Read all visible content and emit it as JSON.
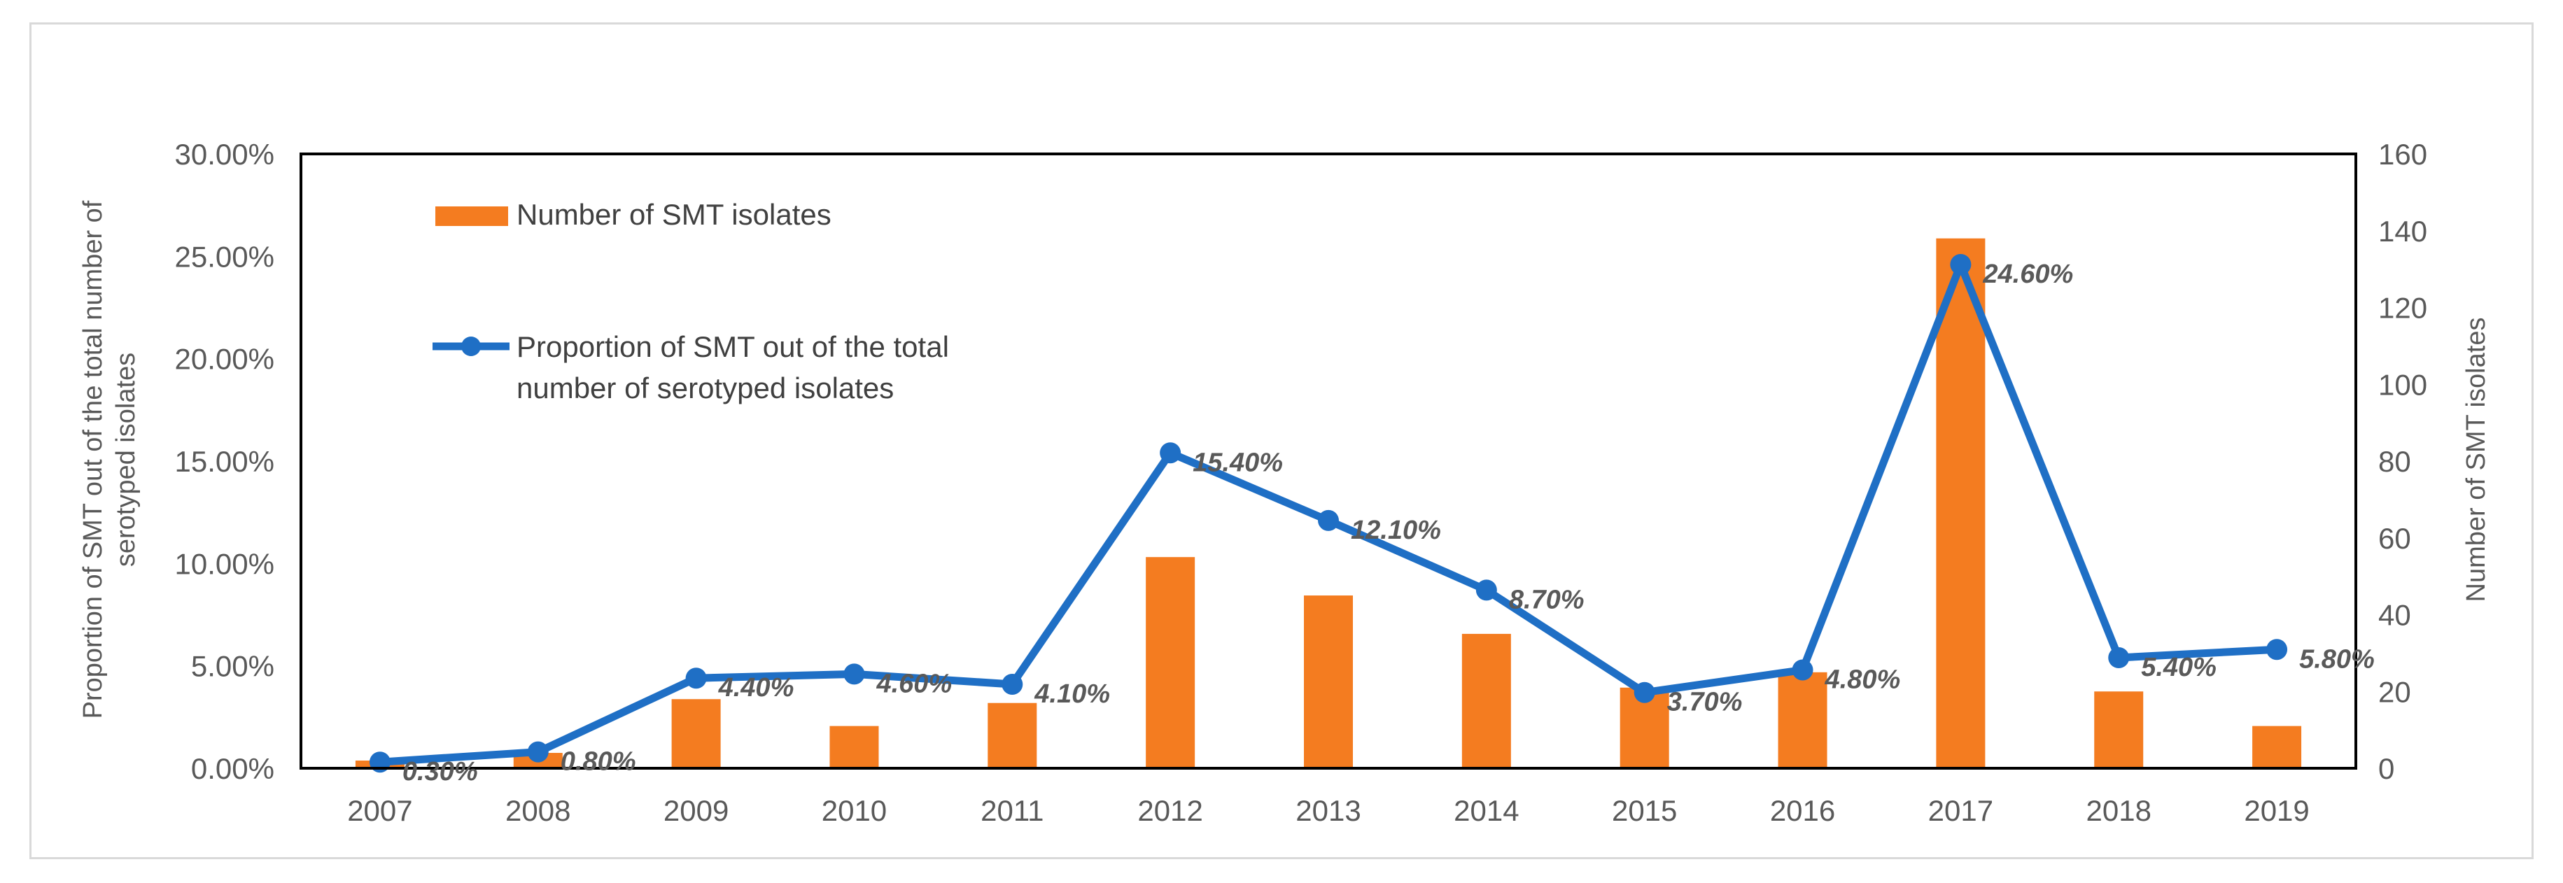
{
  "chart_data": {
    "type": "bar+line",
    "categories": [
      "2007",
      "2008",
      "2009",
      "2010",
      "2011",
      "2012",
      "2013",
      "2014",
      "2015",
      "2016",
      "2017",
      "2018",
      "2019"
    ],
    "series": [
      {
        "name": "Number of SMT  isolates",
        "type": "bar",
        "axis": "right",
        "color": "#f47c20",
        "values": [
          2,
          4,
          18,
          11,
          17,
          55,
          45,
          35,
          21,
          25,
          138,
          20,
          11
        ]
      },
      {
        "name": "Proportion of SMT out of the total number of serotyped isolates",
        "legend_lines": [
          "Proportion of SMT out of the total",
          "number of serotyped isolates"
        ],
        "type": "line",
        "axis": "left",
        "color": "#1f6fc5",
        "values": [
          0.3,
          0.8,
          4.4,
          4.6,
          4.1,
          15.4,
          12.1,
          8.7,
          3.7,
          4.8,
          24.6,
          5.4,
          5.8
        ],
        "data_labels": [
          "0.30%",
          "0.80%",
          "4.40%",
          "4.60%",
          "4.10%",
          "15.40%",
          "12.10%",
          "8.70%",
          "3.70%",
          "4.80%",
          "24.60%",
          "5.40%",
          "5.80%"
        ]
      }
    ],
    "ylabel_left_lines": [
      "Proportion of SMT out of the total number of",
      "serotyped isolates"
    ],
    "ylabel_right": "Number of SMT  isolates",
    "ylim_left": [
      0,
      30
    ],
    "ylim_right": [
      0,
      160
    ],
    "left_ticks": [
      "0.00%",
      "5.00%",
      "10.00%",
      "15.00%",
      "20.00%",
      "25.00%",
      "30.00%"
    ],
    "right_ticks": [
      "0",
      "20",
      "40",
      "60",
      "80",
      "100",
      "120",
      "140",
      "160"
    ],
    "legend_position": "top-left inside plot"
  }
}
